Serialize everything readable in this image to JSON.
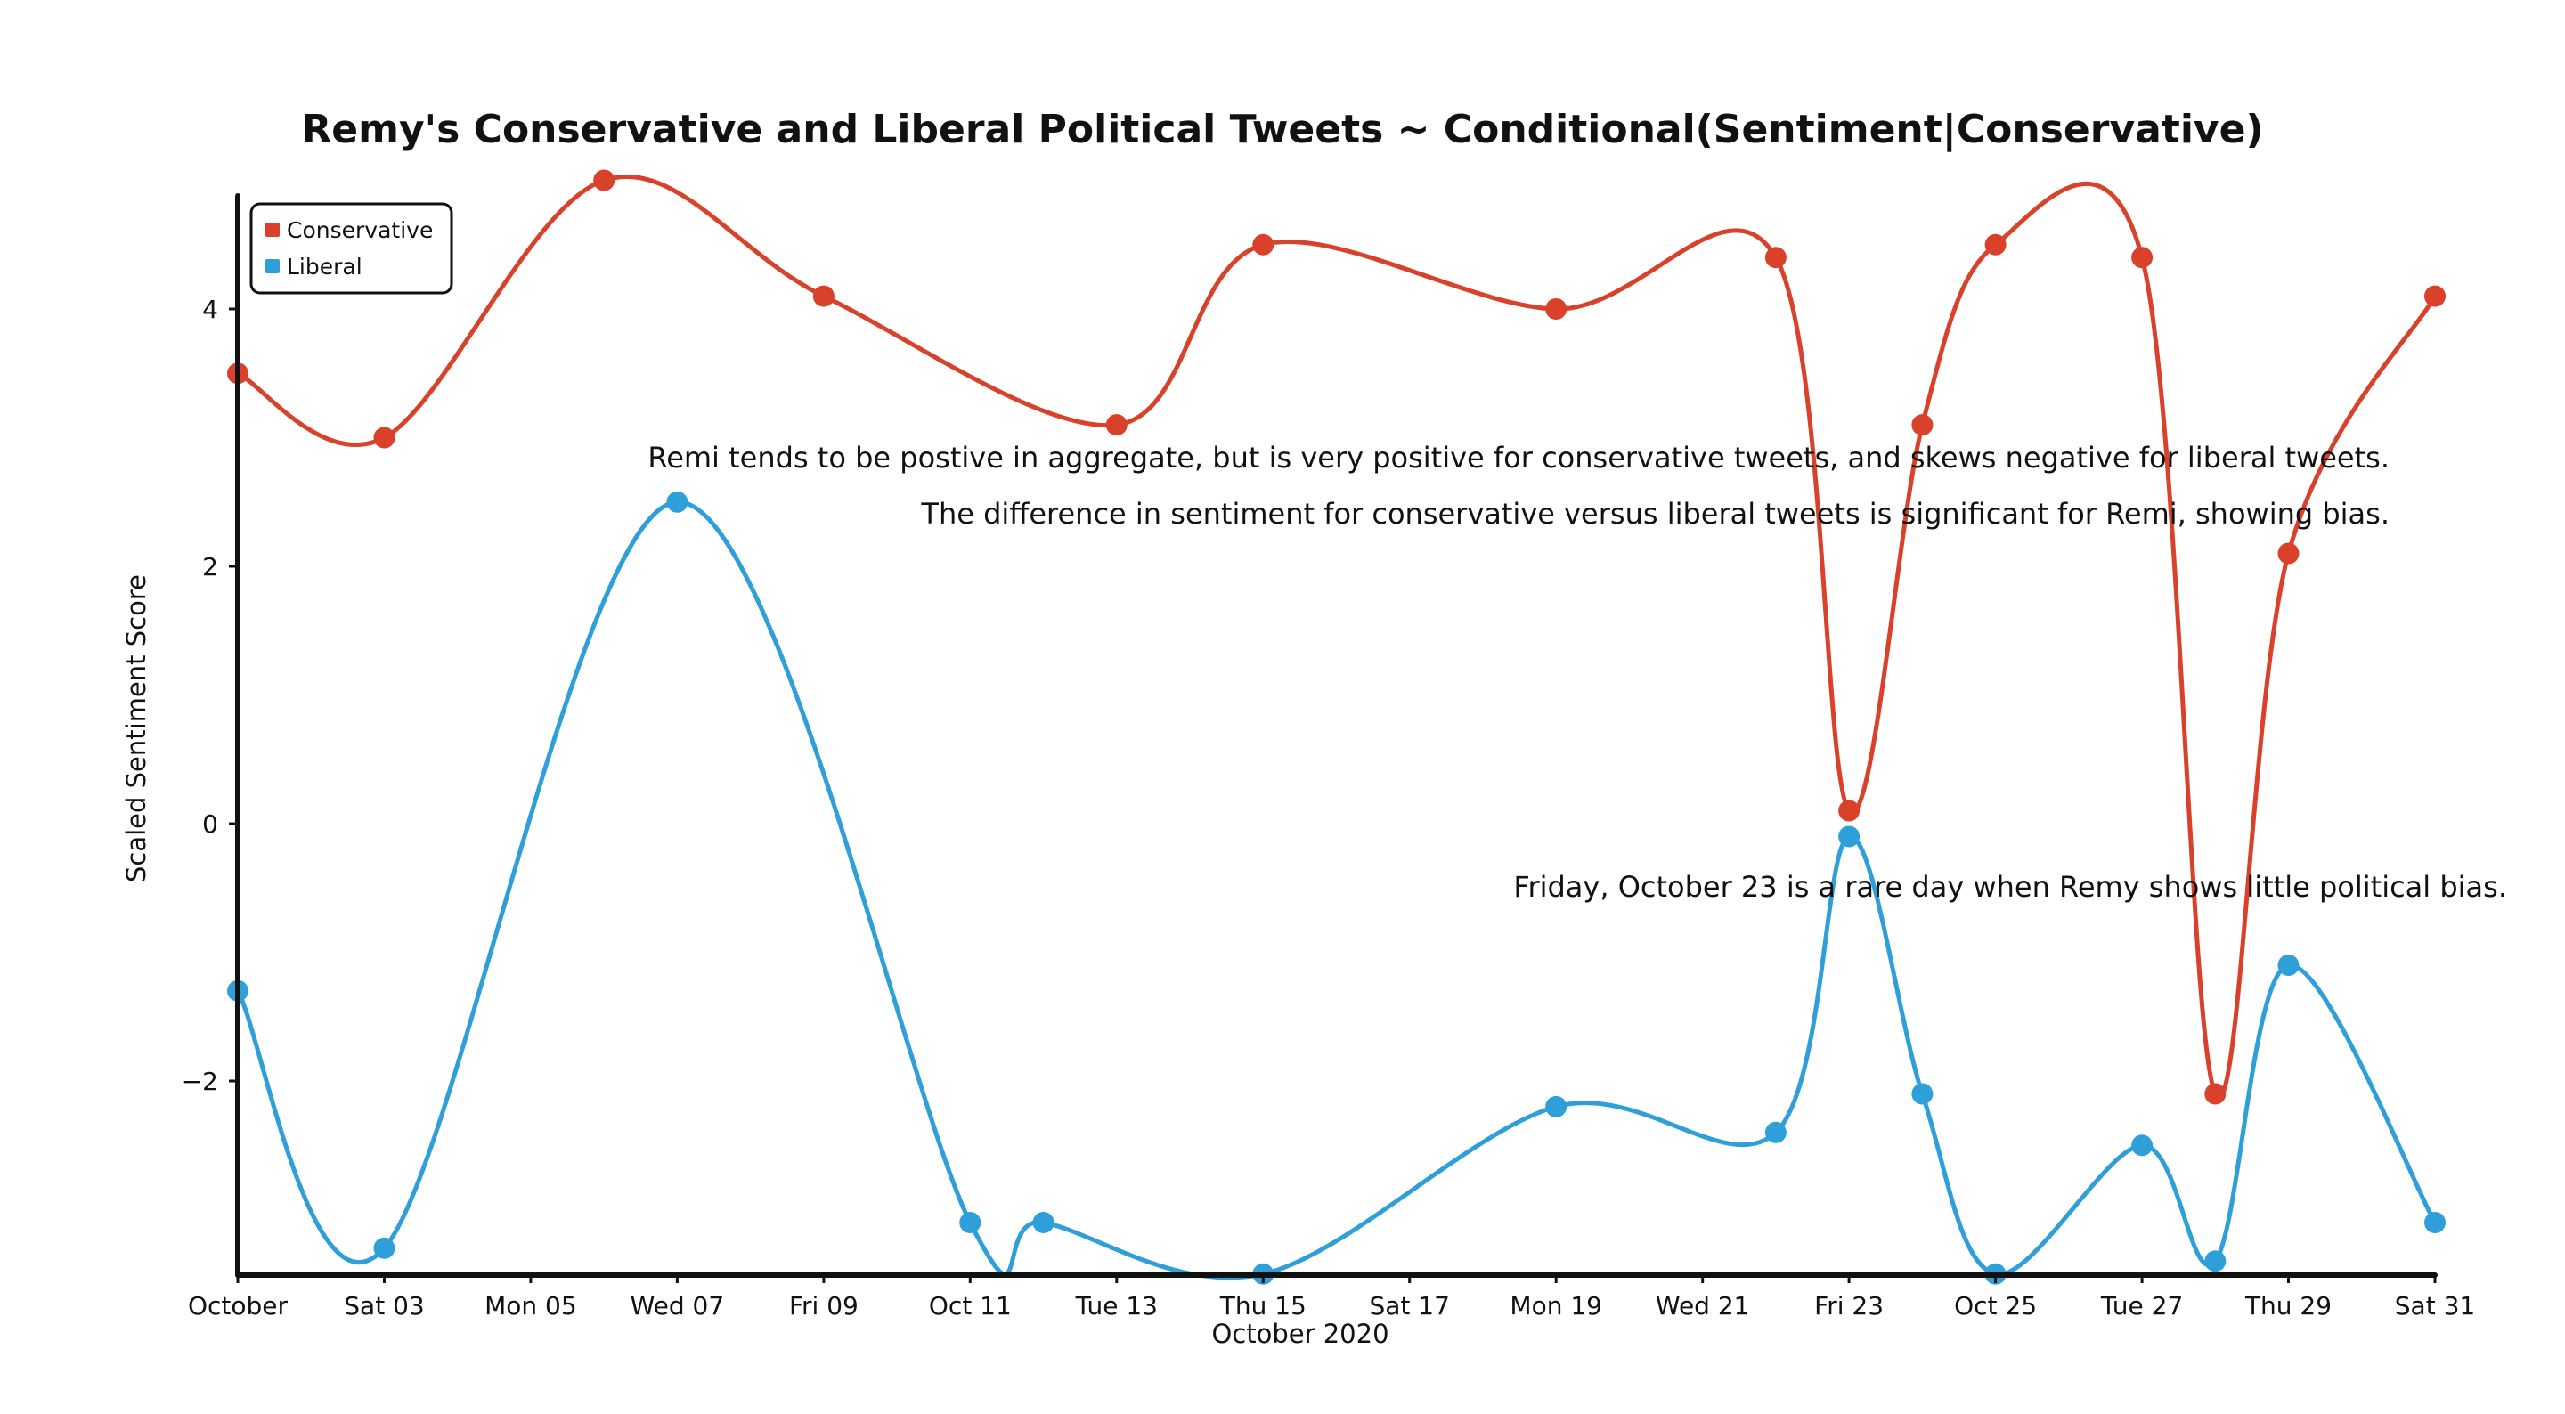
{
  "chart_data": {
    "type": "line",
    "title": "Remy's Conservative and Liberal Political Tweets ~ Conditional(Sentiment|Conservative)",
    "xlabel": "October 2020",
    "ylabel": "Scaled Sentiment Score",
    "x": [
      "2020-10-01",
      "2020-10-03",
      "2020-10-06",
      "2020-10-07",
      "2020-10-09",
      "2020-10-11",
      "2020-10-12",
      "2020-10-13",
      "2020-10-15",
      "2020-10-19",
      "2020-10-22",
      "2020-10-23",
      "2020-10-24",
      "2020-10-25",
      "2020-10-27",
      "2020-10-28",
      "2020-10-29",
      "2020-10-31"
    ],
    "series": [
      {
        "name": "Conservative",
        "color": "#d9412a",
        "points": [
          [
            "2020-10-01",
            3.5
          ],
          [
            "2020-10-03",
            3.0
          ],
          [
            "2020-10-06",
            5.0
          ],
          [
            "2020-10-09",
            4.1
          ],
          [
            "2020-10-13",
            3.1
          ],
          [
            "2020-10-15",
            4.5
          ],
          [
            "2020-10-19",
            4.0
          ],
          [
            "2020-10-22",
            4.4
          ],
          [
            "2020-10-23",
            0.1
          ],
          [
            "2020-10-24",
            3.1
          ],
          [
            "2020-10-25",
            4.5
          ],
          [
            "2020-10-27",
            4.4
          ],
          [
            "2020-10-28",
            -2.1
          ],
          [
            "2020-10-29",
            2.1
          ],
          [
            "2020-10-31",
            4.1
          ]
        ]
      },
      {
        "name": "Liberal",
        "color": "#2e9fd9",
        "points": [
          [
            "2020-10-01",
            -1.3
          ],
          [
            "2020-10-03",
            -3.3
          ],
          [
            "2020-10-07",
            2.5
          ],
          [
            "2020-10-11",
            -3.1
          ],
          [
            "2020-10-12",
            -3.1
          ],
          [
            "2020-10-15",
            -3.5
          ],
          [
            "2020-10-19",
            -2.2
          ],
          [
            "2020-10-22",
            -2.4
          ],
          [
            "2020-10-23",
            -0.1
          ],
          [
            "2020-10-24",
            -2.1
          ],
          [
            "2020-10-25",
            -3.5
          ],
          [
            "2020-10-27",
            -2.5
          ],
          [
            "2020-10-28",
            -3.4
          ],
          [
            "2020-10-29",
            -1.1
          ],
          [
            "2020-10-31",
            -3.1
          ]
        ]
      }
    ],
    "x_ticks": [
      "October",
      "Sat 03",
      "Mon 05",
      "Wed 07",
      "Fri 09",
      "Oct 11",
      "Tue 13",
      "Thu 15",
      "Sat 17",
      "Mon 19",
      "Wed 21",
      "Fri 23",
      "Oct 25",
      "Tue 27",
      "Thu 29",
      "Sat 31"
    ],
    "y_ticks": [
      4,
      2,
      0,
      -2
    ],
    "y_tick_labels": [
      "4",
      "2",
      "0",
      "−2"
    ],
    "xlim": [
      "2020-10-01",
      "2020-10-31"
    ],
    "ylim": [
      -3.5,
      5
    ],
    "grid": false,
    "legend": {
      "position": "top-left",
      "entries": [
        "Conservative",
        "Liberal"
      ]
    },
    "annotations": [
      "Remi tends to be postive in aggregate, but is very positive for conservative tweets, and skews negative for liberal tweets.",
      "The difference in sentiment for conservative versus liberal tweets is significant for Remi, showing bias.",
      "Friday, October 23 is a rare day when Remy shows little political bias."
    ]
  }
}
